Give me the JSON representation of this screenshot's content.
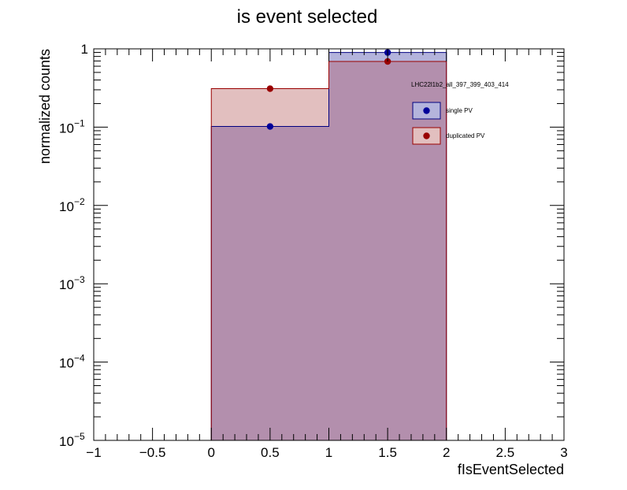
{
  "chart_data": {
    "type": "bar",
    "title": "is event selected",
    "xlabel": "fIsEventSelected",
    "ylabel": "normalized counts",
    "xlim": [
      -1,
      3
    ],
    "ylim": [
      1e-05,
      1
    ],
    "yscale": "log",
    "grid": false,
    "legend_placement": "top-right",
    "legend_header": "LHC22l1b2_all_397_399_403_414",
    "x_ticks": [
      "−1",
      "−0.5",
      "0",
      "0.5",
      "1",
      "1.5",
      "2",
      "2.5",
      "3"
    ],
    "y_ticks": [
      {
        "base": "10",
        "exp": "−5"
      },
      {
        "base": "10",
        "exp": "−4"
      },
      {
        "base": "10",
        "exp": "−3"
      },
      {
        "base": "10",
        "exp": "−2"
      },
      {
        "base": "10",
        "exp": "−1"
      },
      {
        "base": "1",
        "exp": ""
      }
    ],
    "bins": [
      [
        0,
        1
      ],
      [
        1,
        2
      ]
    ],
    "series": [
      {
        "name": "single PV",
        "values": [
          0.102,
          0.898
        ],
        "fill": "#b4b4dc",
        "line": "#000080",
        "marker": "#000099"
      },
      {
        "name": "duplicated PV",
        "values": [
          0.31,
          0.69
        ],
        "fill": "#e2bfbf",
        "line": "#990000",
        "marker": "#990000"
      }
    ],
    "overlap_fill": "#b38fad"
  }
}
